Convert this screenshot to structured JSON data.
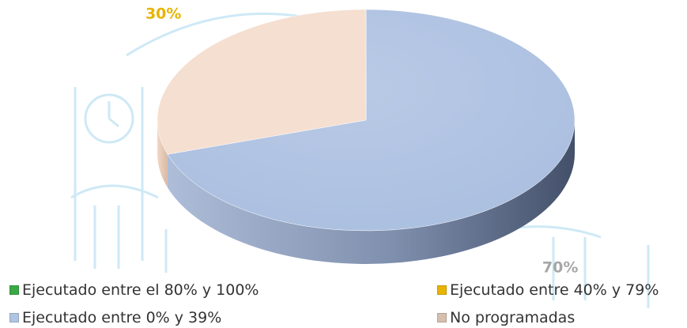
{
  "chart_data": {
    "type": "pie",
    "title": "",
    "categories": [
      "Ejecutado entre el 80% y 100%",
      "Ejecutado entre 40% y 79%",
      "Ejecutado entre 0% y 39%",
      "No programadas"
    ],
    "values": [
      0,
      30,
      70,
      0
    ],
    "data_labels": [
      "",
      "30%",
      "70%",
      ""
    ],
    "colors": [
      "#3aa845",
      "#e8b400",
      "#b0c4e3",
      "#d6bfae"
    ],
    "label_colors": [
      "#3aa845",
      "#e8b400",
      "#a6a6a6",
      "#a6a6a6"
    ],
    "style": "3d-pie",
    "legend_position": "bottom"
  }
}
